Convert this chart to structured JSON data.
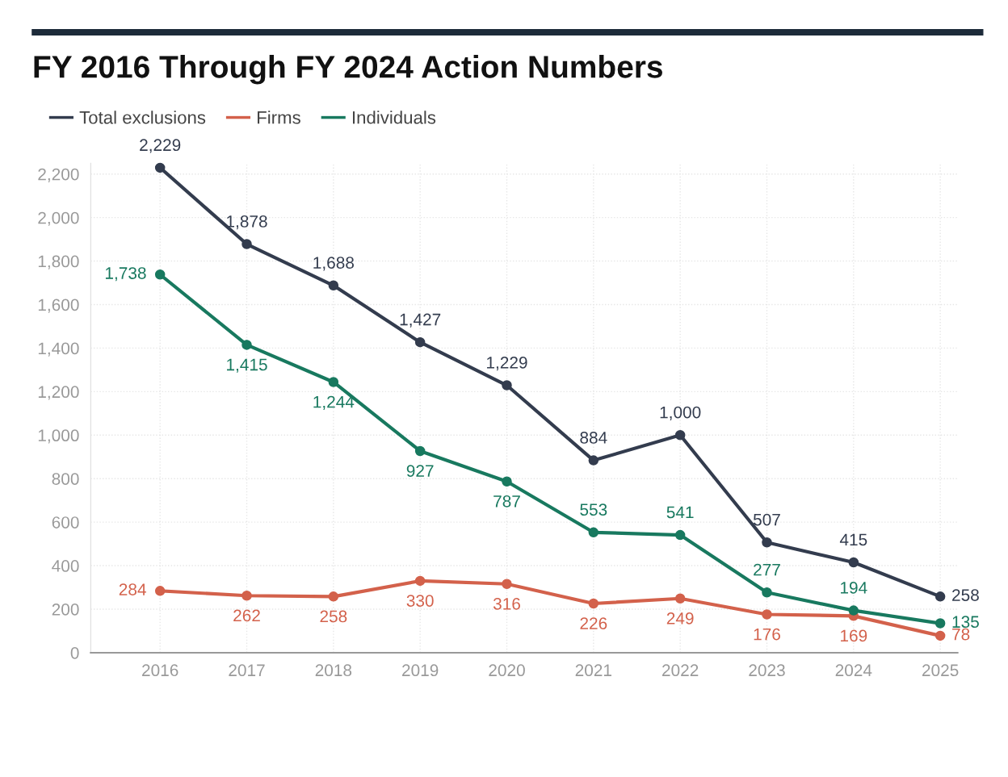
{
  "chart_data": {
    "type": "line",
    "title": "FY 2016 Through FY 2024 Action Numbers",
    "categories": [
      "2016",
      "2017",
      "2018",
      "2019",
      "2020",
      "2021",
      "2022",
      "2023",
      "2024",
      "2025"
    ],
    "series": [
      {
        "name": "Total exclusions",
        "color": "#333c4e",
        "values": [
          2229,
          1878,
          1688,
          1427,
          1229,
          884,
          1000,
          507,
          415,
          258
        ],
        "value_labels": [
          "2,229",
          "1,878",
          "1,688",
          "1,427",
          "1,229",
          "884",
          "1,000",
          "507",
          "415",
          "258"
        ]
      },
      {
        "name": "Firms",
        "color": "#d3614b",
        "values": [
          284,
          262,
          258,
          330,
          316,
          226,
          249,
          176,
          169,
          78
        ],
        "value_labels": [
          "284",
          "262",
          "258",
          "330",
          "316",
          "226",
          "249",
          "176",
          "169",
          "78"
        ]
      },
      {
        "name": "Individuals",
        "color": "#18795f",
        "values": [
          1738,
          1415,
          1244,
          927,
          787,
          553,
          541,
          277,
          194,
          135
        ],
        "value_labels": [
          "1,738",
          "1,415",
          "1,244",
          "927",
          "787",
          "553",
          "541",
          "277",
          "194",
          "135"
        ]
      }
    ],
    "ylim": [
      0,
      2250
    ],
    "yticks": [
      {
        "value": 0,
        "label": "0"
      },
      {
        "value": 200,
        "label": "200"
      },
      {
        "value": 400,
        "label": "400"
      },
      {
        "value": 600,
        "label": "600"
      },
      {
        "value": 800,
        "label": "800"
      },
      {
        "value": 1000,
        "label": "1,000"
      },
      {
        "value": 1200,
        "label": "1,200"
      },
      {
        "value": 1400,
        "label": "1,400"
      },
      {
        "value": 1600,
        "label": "1,600"
      },
      {
        "value": 1800,
        "label": "1,800"
      },
      {
        "value": 2000,
        "label": "2,000"
      },
      {
        "value": 2200,
        "label": "2,200"
      }
    ],
    "grid": true,
    "legend": "top left",
    "marker": "circle",
    "line_style": "solid"
  }
}
